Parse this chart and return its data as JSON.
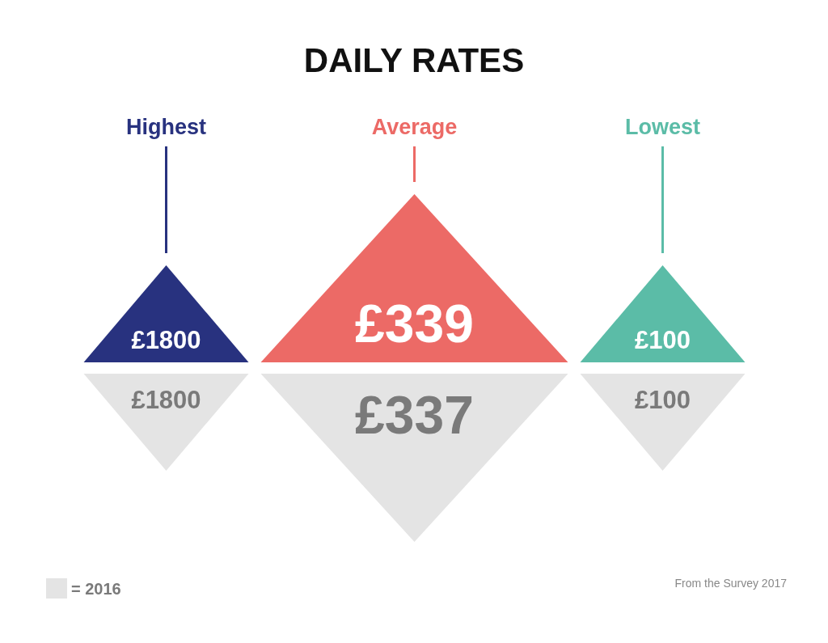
{
  "chart_data": {
    "type": "other",
    "title": "DAILY RATES",
    "categories": [
      "Highest",
      "Average",
      "Lowest"
    ],
    "series": [
      {
        "colors": [
          "#28327f",
          "#ec6a66",
          "#5bbca7"
        ],
        "values": [
          1800,
          339,
          100
        ],
        "value_labels": [
          "£1800",
          "£339",
          "£100"
        ]
      },
      {
        "name": "= 2016",
        "color": "#e4e4e4",
        "values": [
          1800,
          337,
          100
        ],
        "value_labels": [
          "£1800",
          "£337",
          "£100"
        ]
      }
    ],
    "legend": "bottom left",
    "annotations": [
      "From the Survey 2017"
    ]
  }
}
